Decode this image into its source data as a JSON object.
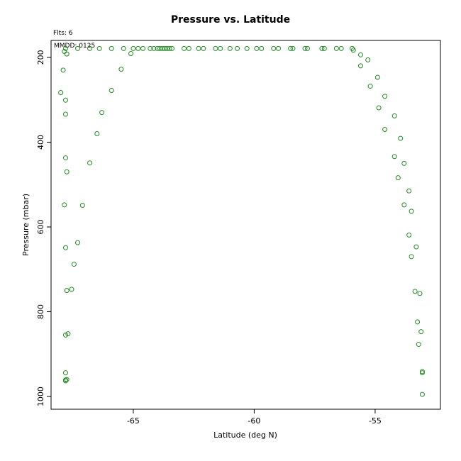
{
  "chart_data": {
    "type": "scatter",
    "title": "Pressure vs. Latitude",
    "notes": [
      "Flts: 6",
      "MMDD: 0125"
    ],
    "xlabel": "Latitude (deg N)",
    "ylabel": "Pressure (mbar)",
    "xlim": [
      -68.4,
      -52.3
    ],
    "ylim": [
      1030,
      160
    ],
    "y_inverted": true,
    "x_ticks": [
      -65,
      -60,
      -55
    ],
    "y_ticks": [
      200,
      400,
      600,
      800,
      1000
    ],
    "grid": false,
    "marker_color": "#228B22",
    "marker": "open-circle",
    "series": [
      {
        "points": [
          [
            -67.8,
            179
          ],
          [
            -67.85,
            186
          ],
          [
            -67.75,
            192
          ],
          [
            -67.9,
            230
          ],
          [
            -68.0,
            283
          ],
          [
            -67.8,
            301
          ],
          [
            -67.8,
            334
          ],
          [
            -67.8,
            437
          ],
          [
            -67.75,
            470
          ],
          [
            -67.85,
            548
          ],
          [
            -67.8,
            649
          ],
          [
            -67.75,
            750
          ],
          [
            -67.8,
            855
          ],
          [
            -67.7,
            852
          ],
          [
            -67.8,
            944
          ],
          [
            -67.8,
            961
          ],
          [
            -67.75,
            960
          ],
          [
            -67.8,
            963
          ],
          [
            -67.3,
            179
          ],
          [
            -66.8,
            179
          ],
          [
            -66.4,
            179
          ],
          [
            -65.9,
            179
          ],
          [
            -65.4,
            179
          ],
          [
            -65.0,
            179
          ],
          [
            -64.8,
            179
          ],
          [
            -64.6,
            179
          ],
          [
            -64.3,
            179
          ],
          [
            -64.15,
            179
          ],
          [
            -64.0,
            179
          ],
          [
            -63.9,
            179
          ],
          [
            -63.8,
            179
          ],
          [
            -63.7,
            179
          ],
          [
            -63.6,
            179
          ],
          [
            -63.5,
            179
          ],
          [
            -63.4,
            179
          ],
          [
            -62.9,
            179
          ],
          [
            -62.7,
            179
          ],
          [
            -62.3,
            179
          ],
          [
            -62.1,
            179
          ],
          [
            -61.6,
            179
          ],
          [
            -61.4,
            179
          ],
          [
            -61.0,
            179
          ],
          [
            -60.7,
            179
          ],
          [
            -60.3,
            179
          ],
          [
            -59.9,
            179
          ],
          [
            -59.7,
            179
          ],
          [
            -59.2,
            179
          ],
          [
            -59.0,
            179
          ],
          [
            -58.5,
            179
          ],
          [
            -58.4,
            179
          ],
          [
            -57.9,
            179
          ],
          [
            -57.8,
            179
          ],
          [
            -57.2,
            179
          ],
          [
            -57.1,
            179
          ],
          [
            -56.6,
            179
          ],
          [
            -56.4,
            179
          ],
          [
            -55.95,
            179
          ],
          [
            -55.9,
            183
          ],
          [
            -65.1,
            191
          ],
          [
            -65.5,
            228
          ],
          [
            -65.9,
            278
          ],
          [
            -66.3,
            330
          ],
          [
            -66.5,
            380
          ],
          [
            -66.8,
            449
          ],
          [
            -67.1,
            549
          ],
          [
            -67.3,
            637
          ],
          [
            -67.45,
            688
          ],
          [
            -67.55,
            747
          ],
          [
            -55.6,
            194
          ],
          [
            -55.3,
            206
          ],
          [
            -55.6,
            220
          ],
          [
            -54.9,
            247
          ],
          [
            -55.2,
            268
          ],
          [
            -54.6,
            292
          ],
          [
            -54.85,
            319
          ],
          [
            -54.2,
            338
          ],
          [
            -54.6,
            370
          ],
          [
            -53.95,
            391
          ],
          [
            -54.2,
            434
          ],
          [
            -53.8,
            450
          ],
          [
            -54.05,
            484
          ],
          [
            -53.6,
            515
          ],
          [
            -53.8,
            548
          ],
          [
            -53.5,
            563
          ],
          [
            -53.6,
            619
          ],
          [
            -53.3,
            647
          ],
          [
            -53.5,
            670
          ],
          [
            -53.35,
            752
          ],
          [
            -53.15,
            757
          ],
          [
            -53.25,
            824
          ],
          [
            -53.1,
            847
          ],
          [
            -53.2,
            877
          ],
          [
            -53.05,
            941
          ],
          [
            -53.05,
            944
          ],
          [
            -53.05,
            995
          ]
        ]
      }
    ]
  }
}
